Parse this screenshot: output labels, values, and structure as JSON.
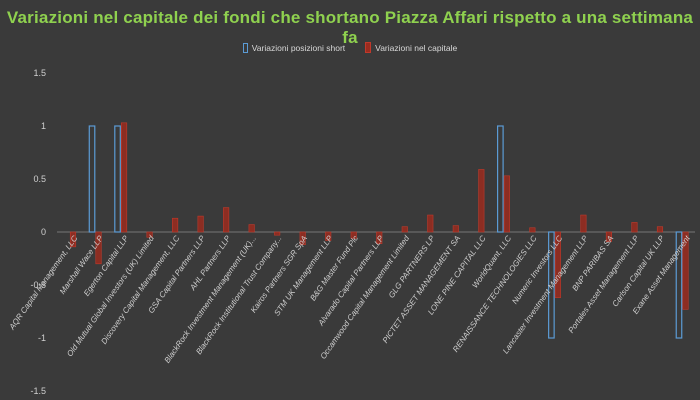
{
  "chart_data": {
    "type": "bar",
    "title": "Variazioni nel capitale dei fondi che shortano Piazza Affari rispetto a una settimana fa",
    "ylim": [
      -1.5,
      1.5
    ],
    "yticks": [
      -1.5,
      -1,
      -0.5,
      0,
      0.5,
      1,
      1.5
    ],
    "ytick_labels": [
      "-1.5",
      "-1",
      "-0.5",
      "0",
      "0.5",
      "1",
      "1.5"
    ],
    "grid": false,
    "legend_position": "top",
    "categories": [
      "AQR Capital Management, LLC",
      "Marshall Wace LLP",
      "Egerton Capital LLP",
      "Old Mutual Global Investors (UK) Limited",
      "Discovery Capital Management, LLC",
      "GSA Capital Partners LLP",
      "AHL Partners LLP",
      "BlackRock Investment Management (UK)...",
      "BlackRock Institutional Trust Company...",
      "Kairos Partners SGR SpA",
      "STM UK Management LLP",
      "B&G Master Fund Plc",
      "Alvarado Capital Partners LLP",
      "Occamwood Capital Management Limited",
      "GLG PARTNERS LP",
      "PICTET ASSET MANAGEMENT SA",
      "LONE PINE CAPITAL LLC",
      "WorldQuant, LLC",
      "RENAISSANCE TECHNOLOGIES LLC",
      "Numeric Investors LLC",
      "Lancaster Investment Management LLP",
      "BNP PARIBAS SA",
      "Portales Asset Management LLP",
      "Carlson Capital UK LLP",
      "Exane Asset Management"
    ],
    "series": [
      {
        "name": "Variazioni posizioni short",
        "color": "#5b9bd5",
        "style": "outline",
        "values": [
          0,
          1,
          1,
          0,
          0,
          0,
          0,
          0,
          0,
          0,
          0,
          0,
          0,
          0,
          0,
          0,
          0,
          1,
          0,
          -1,
          0,
          0,
          0,
          0,
          -1
        ]
      },
      {
        "name": "Variazioni nel capitale",
        "color": "#9b2c1f",
        "style": "fill",
        "values": [
          -0.14,
          -0.3,
          1.03,
          -0.05,
          0.13,
          0.15,
          0.23,
          0.07,
          -0.03,
          -0.12,
          -0.08,
          -0.06,
          -0.11,
          0.05,
          0.16,
          0.06,
          0.59,
          0.53,
          0.04,
          -0.62,
          0.16,
          -0.09,
          0.09,
          0.05,
          -0.73
        ]
      }
    ]
  }
}
